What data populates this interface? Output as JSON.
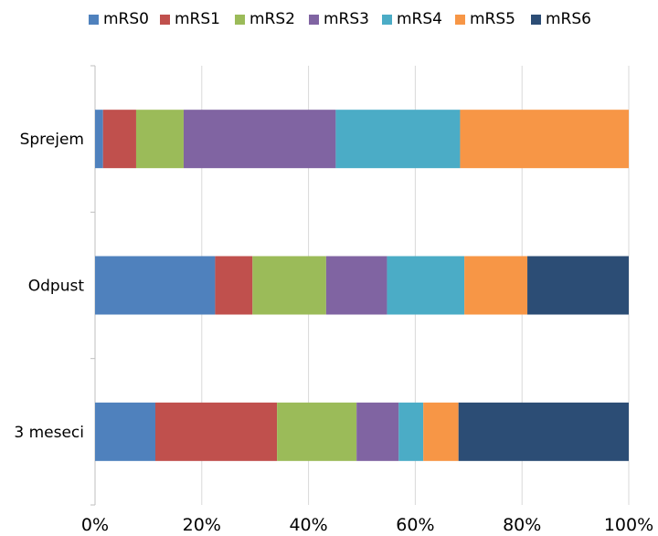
{
  "chart_data": {
    "type": "bar",
    "orientation": "horizontal",
    "stacked": "percent",
    "categories": [
      "Sprejem",
      "Odpust",
      "3 meseci"
    ],
    "series": [
      {
        "name": "mRS0",
        "color": "#4F81BD",
        "values": [
          1.5,
          22.5,
          11.3
        ]
      },
      {
        "name": "mRS1",
        "color": "#C0504D",
        "values": [
          6.2,
          7.0,
          22.8
        ]
      },
      {
        "name": "mRS2",
        "color": "#9BBB59",
        "values": [
          8.9,
          13.8,
          14.9
        ]
      },
      {
        "name": "mRS3",
        "color": "#8064A2",
        "values": [
          28.5,
          11.4,
          7.9
        ]
      },
      {
        "name": "mRS4",
        "color": "#4BACC6",
        "values": [
          23.3,
          14.5,
          4.6
        ]
      },
      {
        "name": "mRS5",
        "color": "#F79646",
        "values": [
          31.6,
          11.8,
          6.6
        ]
      },
      {
        "name": "mRS6",
        "color": "#2C4D75",
        "values": [
          0,
          19.0,
          31.9
        ]
      }
    ],
    "x_ticks": [
      "0%",
      "20%",
      "40%",
      "60%",
      "80%",
      "100%"
    ],
    "xlim": [
      0,
      100
    ],
    "grid": true,
    "legend": "top"
  }
}
